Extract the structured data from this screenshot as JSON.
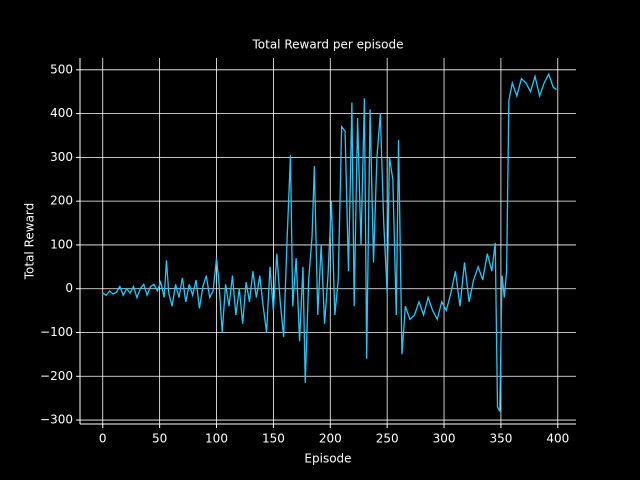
{
  "chart_data": {
    "type": "line",
    "title": "Total Reward per episode",
    "xlabel": "Episode",
    "ylabel": "Total Reward",
    "xlim": [
      -20,
      416
    ],
    "ylim": [
      -309,
      527
    ],
    "xticks": [
      0,
      50,
      100,
      150,
      200,
      250,
      300,
      350,
      400
    ],
    "yticks": [
      {
        "value": -300,
        "label": "−300"
      },
      {
        "value": -200,
        "label": "−200"
      },
      {
        "value": -100,
        "label": "−100"
      },
      0,
      100,
      200,
      300,
      400,
      500
    ],
    "grid": true,
    "series": [
      {
        "color": "#29c5f6",
        "x": [
          0,
          3,
          6,
          9,
          12,
          15,
          18,
          21,
          24,
          27,
          30,
          33,
          36,
          39,
          42,
          45,
          48,
          51,
          54,
          56,
          58,
          61,
          64,
          67,
          70,
          73,
          76,
          79,
          82,
          85,
          88,
          91,
          94,
          97,
          100,
          102,
          105,
          108,
          111,
          114,
          117,
          120,
          123,
          126,
          129,
          132,
          135,
          138,
          141,
          144,
          147,
          150,
          153,
          156,
          159,
          162,
          165,
          167,
          170,
          173,
          176,
          178,
          181,
          184,
          186,
          189,
          192,
          195,
          198,
          201,
          204,
          207,
          210,
          213,
          216,
          219,
          221,
          224,
          227,
          230,
          232,
          235,
          238,
          241,
          244,
          247,
          250,
          252,
          255,
          258,
          260,
          263,
          266,
          270,
          274,
          278,
          282,
          286,
          290,
          294,
          298,
          302,
          306,
          310,
          314,
          318,
          322,
          326,
          330,
          334,
          338,
          342,
          345,
          347,
          349,
          351,
          353,
          355,
          357,
          360,
          364,
          368,
          372,
          376,
          380,
          384,
          388,
          392,
          396,
          399
        ],
        "values": [
          -10,
          -15,
          -5,
          -12,
          -8,
          5,
          -15,
          0,
          -10,
          5,
          -20,
          0,
          10,
          -15,
          5,
          10,
          -5,
          15,
          -20,
          65,
          -10,
          -40,
          10,
          -20,
          25,
          -30,
          10,
          -15,
          20,
          -45,
          5,
          30,
          -20,
          -5,
          70,
          20,
          -100,
          10,
          -40,
          30,
          -60,
          0,
          -80,
          15,
          -30,
          40,
          -20,
          30,
          -40,
          -100,
          50,
          -50,
          80,
          -30,
          -110,
          110,
          305,
          -40,
          70,
          -120,
          50,
          -215,
          20,
          120,
          280,
          -60,
          100,
          -80,
          30,
          200,
          -60,
          20,
          370,
          360,
          40,
          425,
          -40,
          390,
          100,
          435,
          -160,
          410,
          60,
          300,
          400,
          150,
          -10,
          300,
          250,
          -60,
          340,
          -150,
          -40,
          -70,
          -60,
          -30,
          -60,
          -20,
          -50,
          -70,
          -30,
          -50,
          -10,
          40,
          -40,
          60,
          -30,
          20,
          50,
          20,
          80,
          40,
          105,
          -270,
          -280,
          30,
          -20,
          40,
          430,
          470,
          440,
          480,
          470,
          450,
          485,
          440,
          470,
          490,
          460,
          455
        ]
      }
    ]
  }
}
